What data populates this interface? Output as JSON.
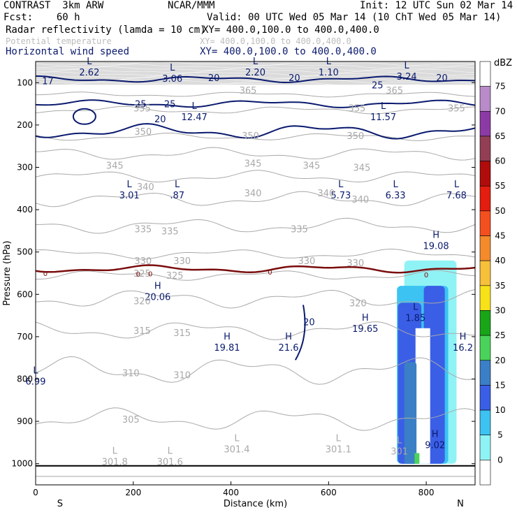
{
  "header": {
    "left1": "CONTRAST  3km ARW",
    "center1": "NCAR/MMM",
    "right1": "Init: 12 UTC Sun 02 Mar 14",
    "left2": "Fcst:    60 h",
    "right2": "Valid: 00 UTC Wed 05 Mar 14 (10 ChT Wed 05 Mar 14)",
    "fields": [
      {
        "name": "Radar reflectivity (lamda = 10 cm)",
        "xy": "XY= 400.0,100.0 to 400.0,400.0"
      },
      {
        "name": "Potential temperature",
        "xy": "XY= 400.0,100.0 to 400.0,400.0"
      },
      {
        "name": "Horizontal wind speed",
        "xy": "XY= 400.0,100.0 to 400.0,400.0"
      }
    ]
  },
  "chart_data": {
    "type": "contour-cross-section",
    "xlabel": "Distance (km)",
    "ylabel": "Pressure (hPa)",
    "xlim": [
      0,
      900
    ],
    "ylim": [
      1050,
      50
    ],
    "x_ticks": [
      0,
      200,
      400,
      600,
      800
    ],
    "y_ticks": [
      100,
      200,
      300,
      400,
      500,
      600,
      700,
      800,
      900,
      1000
    ],
    "endpoint_labels": {
      "left": "S",
      "right": "N"
    },
    "colorbar": {
      "title": "dBZ",
      "levels": [
        "0",
        "5",
        "10",
        "15",
        "20",
        "25",
        "30",
        "35",
        "40",
        "45",
        "50",
        "55",
        "60",
        "65",
        "70",
        "75"
      ],
      "colors": [
        "#ffffff",
        "#8ff3f5",
        "#3cc3f2",
        "#3a5ee6",
        "#3b7fc6",
        "#49d35a",
        "#18a518",
        "#f7e118",
        "#f7c03a",
        "#f48a2b",
        "#f4501f",
        "#e31d0f",
        "#b00c0c",
        "#923f55",
        "#8b3ba3",
        "#b98bc9",
        "#ffffff"
      ]
    },
    "theta_contours": [
      {
        "value": 300,
        "base_p": 1030,
        "amp": 0
      },
      {
        "value": 305,
        "base_p": 895,
        "amp": 18
      },
      {
        "value": 310,
        "base_p": 780,
        "amp": 22
      },
      {
        "value": 315,
        "base_p": 685,
        "amp": 15
      },
      {
        "value": 320,
        "base_p": 610,
        "amp": 15
      },
      {
        "value": 325,
        "base_p": 555,
        "amp": 8
      },
      {
        "value": 330,
        "base_p": 505,
        "amp": 8
      },
      {
        "value": 335,
        "base_p": 438,
        "amp": 12
      },
      {
        "value": 340,
        "base_p": 375,
        "amp": 12
      },
      {
        "value": 345,
        "base_p": 322,
        "amp": 10
      },
      {
        "value": 350,
        "base_p": 268,
        "amp": 10
      },
      {
        "value": 355,
        "base_p": 228,
        "amp": 6
      },
      {
        "value": 360,
        "base_p": 165,
        "amp": 6
      },
      {
        "value": 365,
        "base_p": 128,
        "amp": 4
      }
    ],
    "zero_line_p": 540,
    "wind_contours": [
      {
        "value": 20,
        "base_p": 215,
        "amp": 12
      },
      {
        "value": 25,
        "base_p": 150,
        "amp": 6
      },
      {
        "value": 20,
        "base_p": 92,
        "amp": 5
      }
    ],
    "jet_minmax": [
      {
        "kind": "L",
        "value": "2.62",
        "x": 110,
        "p": 70
      },
      {
        "kind": "L",
        "value": "3.06",
        "x": 280,
        "p": 85
      },
      {
        "kind": "L",
        "value": "2.20",
        "x": 450,
        "p": 70
      },
      {
        "kind": "L",
        "value": "1.10",
        "x": 600,
        "p": 70
      },
      {
        "kind": "L",
        "value": "3.24",
        "x": 760,
        "p": 80
      },
      {
        "kind": "L",
        "value": "12.47",
        "x": 325,
        "p": 175
      },
      {
        "kind": "L",
        "value": "11.57",
        "x": 712,
        "p": 175
      },
      {
        "kind": "L",
        "value": "3.01",
        "x": 192,
        "p": 360
      },
      {
        "kind": "L",
        "value": ".87",
        "x": 290,
        "p": 360
      },
      {
        "kind": "L",
        "value": "5.73",
        "x": 625,
        "p": 360
      },
      {
        "kind": "L",
        "value": "6.33",
        "x": 737,
        "p": 360
      },
      {
        "kind": "L",
        "value": "7.68",
        "x": 862,
        "p": 360
      },
      {
        "kind": "H",
        "value": "19.08",
        "x": 820,
        "p": 480
      },
      {
        "kind": "H",
        "value": "20.06",
        "x": 250,
        "p": 600
      },
      {
        "kind": "L",
        "value": "1.85",
        "x": 778,
        "p": 650
      },
      {
        "kind": "H",
        "value": "19.65",
        "x": 675,
        "p": 675
      },
      {
        "kind": "H",
        "value": "19.81",
        "x": 392,
        "p": 720
      },
      {
        "kind": "H",
        "value": "21.6",
        "x": 518,
        "p": 720
      },
      {
        "kind": "H",
        "value": "16.2",
        "x": 875,
        "p": 720
      },
      {
        "kind": "L",
        "value": "6.99",
        "x": 0,
        "p": 800
      },
      {
        "kind": "H",
        "value": "9.02",
        "x": 818,
        "p": 950
      }
    ],
    "theta_minmax": [
      {
        "kind": "L",
        "value": "301.8",
        "x": 162,
        "p": 990
      },
      {
        "kind": "L",
        "value": "301.6",
        "x": 275,
        "p": 990
      },
      {
        "kind": "L",
        "value": "301.4",
        "x": 412,
        "p": 960
      },
      {
        "kind": "L",
        "value": "301.1",
        "x": 620,
        "p": 960
      },
      {
        "kind": "L",
        "value": "301",
        "x": 745,
        "p": 965
      }
    ],
    "inline_labels": [
      {
        "value": "17",
        "x": 25,
        "p": 95,
        "series": "wind"
      },
      {
        "value": "20",
        "x": 365,
        "p": 88,
        "series": "wind"
      },
      {
        "value": "20",
        "x": 530,
        "p": 88,
        "series": "wind"
      },
      {
        "value": "20",
        "x": 832,
        "p": 88,
        "series": "wind"
      },
      {
        "value": "25",
        "x": 700,
        "p": 105,
        "series": "wind"
      },
      {
        "value": "25",
        "x": 215,
        "p": 150,
        "series": "wind"
      },
      {
        "value": "25",
        "x": 275,
        "p": 150,
        "series": "wind"
      },
      {
        "value": "20",
        "x": 255,
        "p": 185,
        "series": "wind"
      },
      {
        "value": "20",
        "x": 560,
        "p": 665,
        "series": "wind"
      },
      {
        "value": "365",
        "x": 435,
        "p": 118,
        "series": "theta"
      },
      {
        "value": "365",
        "x": 735,
        "p": 118,
        "series": "theta"
      },
      {
        "value": "355",
        "x": 218,
        "p": 160,
        "series": "theta"
      },
      {
        "value": "355",
        "x": 658,
        "p": 160,
        "series": "theta"
      },
      {
        "value": "355",
        "x": 862,
        "p": 160,
        "series": "theta"
      },
      {
        "value": "350",
        "x": 220,
        "p": 215,
        "series": "theta"
      },
      {
        "value": "350",
        "x": 440,
        "p": 225,
        "series": "theta"
      },
      {
        "value": "350",
        "x": 655,
        "p": 225,
        "series": "theta"
      },
      {
        "value": "345",
        "x": 162,
        "p": 295,
        "series": "theta"
      },
      {
        "value": "345",
        "x": 445,
        "p": 290,
        "series": "theta"
      },
      {
        "value": "345",
        "x": 565,
        "p": 295,
        "series": "theta"
      },
      {
        "value": "345",
        "x": 668,
        "p": 300,
        "series": "theta"
      },
      {
        "value": "340",
        "x": 225,
        "p": 345,
        "series": "theta"
      },
      {
        "value": "340",
        "x": 445,
        "p": 360,
        "series": "theta"
      },
      {
        "value": "340",
        "x": 595,
        "p": 360,
        "series": "theta"
      },
      {
        "value": "340",
        "x": 665,
        "p": 375,
        "series": "theta"
      },
      {
        "value": "335",
        "x": 220,
        "p": 445,
        "series": "theta"
      },
      {
        "value": "335",
        "x": 275,
        "p": 450,
        "series": "theta"
      },
      {
        "value": "335",
        "x": 540,
        "p": 445,
        "series": "theta"
      },
      {
        "value": "330",
        "x": 220,
        "p": 520,
        "series": "theta"
      },
      {
        "value": "330",
        "x": 300,
        "p": 520,
        "series": "theta"
      },
      {
        "value": "330",
        "x": 555,
        "p": 520,
        "series": "theta"
      },
      {
        "value": "330",
        "x": 655,
        "p": 525,
        "series": "theta"
      },
      {
        "value": "325",
        "x": 218,
        "p": 550,
        "series": "theta"
      },
      {
        "value": "325",
        "x": 285,
        "p": 555,
        "series": "theta"
      },
      {
        "value": "320",
        "x": 218,
        "p": 615,
        "series": "theta"
      },
      {
        "value": "320",
        "x": 660,
        "p": 620,
        "series": "theta"
      },
      {
        "value": "315",
        "x": 218,
        "p": 685,
        "series": "theta"
      },
      {
        "value": "315",
        "x": 300,
        "p": 690,
        "series": "theta"
      },
      {
        "value": "310",
        "x": 195,
        "p": 785,
        "series": "theta"
      },
      {
        "value": "310",
        "x": 300,
        "p": 790,
        "series": "theta"
      },
      {
        "value": "305",
        "x": 195,
        "p": 895,
        "series": "theta"
      },
      {
        "value": "0",
        "x": 20,
        "p": 548,
        "series": "zero"
      },
      {
        "value": "0",
        "x": 210,
        "p": 550,
        "series": "zero"
      },
      {
        "value": "0",
        "x": 235,
        "p": 549,
        "series": "zero"
      },
      {
        "value": "0",
        "x": 480,
        "p": 545,
        "series": "zero"
      },
      {
        "value": "0",
        "x": 800,
        "p": 552,
        "series": "zero"
      }
    ]
  }
}
